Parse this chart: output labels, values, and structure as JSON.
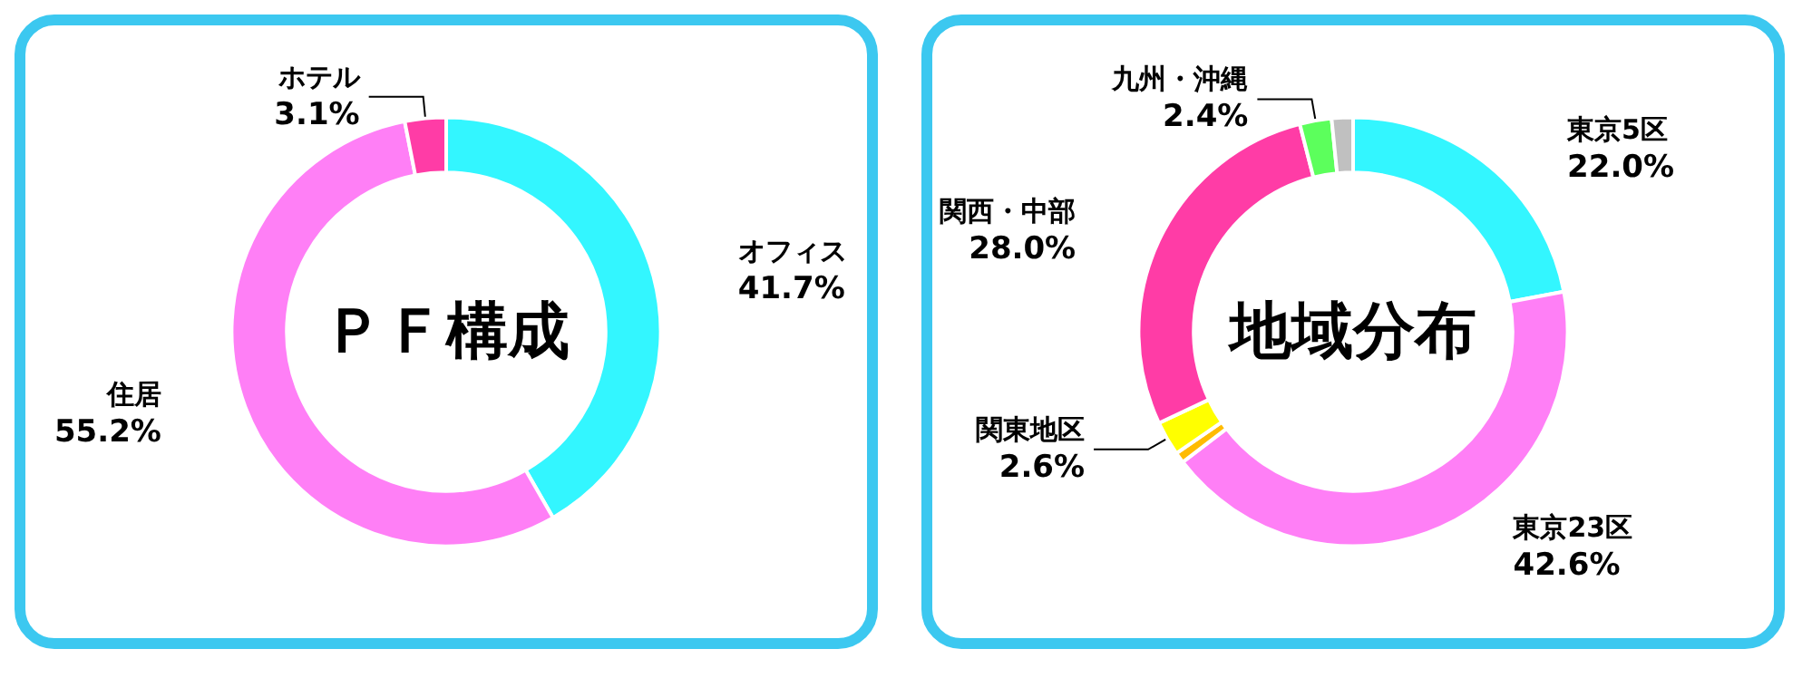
{
  "chart_data": [
    {
      "type": "donut",
      "title": "ＰＦ構成",
      "categories": [
        "オフィス",
        "住居",
        "ホテル"
      ],
      "values": [
        41.7,
        55.2,
        3.1
      ],
      "colors": [
        "#33f6ff",
        "#ff7ff6",
        "#ff3ca6"
      ],
      "value_labels": [
        "41.7%",
        "55.2%",
        "3.1%"
      ],
      "legend": false
    },
    {
      "type": "donut",
      "title": "地域分布",
      "categories": [
        "東京5区",
        "東京23区",
        null,
        "関東地区",
        "関西・中部",
        "九州・沖縄",
        null
      ],
      "values": [
        22.0,
        42.6,
        0.8,
        2.6,
        28.0,
        2.4,
        1.6
      ],
      "colors": [
        "#33f6ff",
        "#ff7ff6",
        "#ffbb00",
        "#ffff00",
        "#ff3ca6",
        "#5cff5c",
        "#c0c0c0"
      ],
      "value_labels": [
        "22.0%",
        "42.6%",
        null,
        "2.6%",
        "28.0%",
        "2.4%",
        null
      ],
      "legend": false
    }
  ]
}
